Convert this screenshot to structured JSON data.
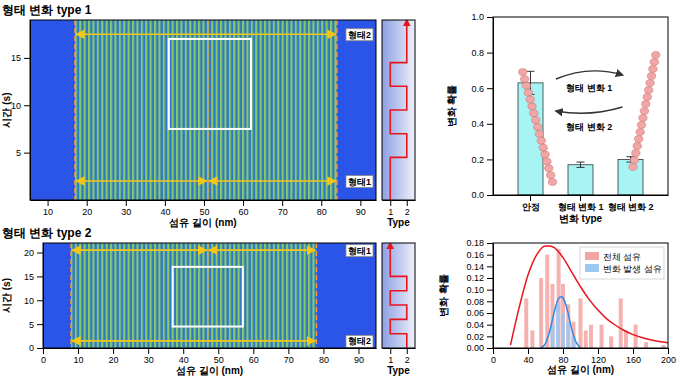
{
  "chart_data": [
    {
      "type": "kymograph",
      "title": "형태 변화 type 1",
      "x_label": "섬유 길이 (nm)",
      "y_label": "시간 (s)",
      "xlim": [
        5.5,
        94
      ],
      "xticks": [
        10,
        20,
        30,
        40,
        50,
        60,
        70,
        80,
        90
      ],
      "ylim": [
        0,
        19
      ],
      "yticks": [
        5,
        10,
        15
      ],
      "dashed_lines": [
        17,
        51,
        84
      ],
      "arrows": [
        {
          "from": 17,
          "to": 84,
          "y": 17.5
        },
        {
          "from": 17,
          "to": 51,
          "y": 2
        },
        {
          "from": 51,
          "to": 84,
          "y": 2
        }
      ],
      "state_labels": [
        {
          "text": "형태2",
          "y": 17.5
        },
        {
          "text": "형태1",
          "y": 2
        }
      ],
      "box": {
        "x": [
          41,
          62
        ],
        "y": [
          7.5,
          17
        ]
      },
      "type_panel": {
        "x_label": "Type",
        "xlim": [
          0.5,
          2.5
        ],
        "xticks": [
          1,
          2
        ],
        "color": "#e8141c",
        "x": [
          1,
          1,
          2,
          2,
          1,
          1,
          2,
          2,
          1,
          1,
          2,
          2
        ],
        "y": [
          0,
          4.5,
          4.5,
          7,
          7,
          9.5,
          9.5,
          12,
          12,
          14.5,
          14.5,
          19
        ]
      }
    },
    {
      "type": "bar",
      "x_label": "변화 type",
      "y_label": "변화 확률",
      "categories": [
        "안정",
        "형태 변화 1",
        "형태 변화 2"
      ],
      "values": [
        0.63,
        0.17,
        0.2
      ],
      "errors": [
        0.065,
        0.015,
        0.015
      ],
      "color": "#a8f4f4",
      "ylim": [
        0,
        1
      ],
      "yticks": [
        {
          "value": 0,
          "label": "0.0"
        },
        0.2,
        0.4,
        0.6,
        0.8,
        {
          "value": 1,
          "label": "1.0"
        }
      ],
      "annotations": [
        "형태 변화 1",
        "형태 변화 2"
      ]
    },
    {
      "type": "kymograph",
      "title": "형태 변화 type 2",
      "x_label": "섬유 길이 (nm)",
      "y_label": "시간 (s)",
      "xlim": [
        0,
        95
      ],
      "xticks": [
        0,
        10,
        20,
        30,
        40,
        50,
        60,
        70,
        80,
        90
      ],
      "ylim": [
        0,
        22
      ],
      "yticks": [
        0,
        5,
        10,
        15,
        20
      ],
      "dashed_lines": [
        8,
        47,
        78
      ],
      "arrows": [
        {
          "from": 8,
          "to": 47,
          "y": 20.5
        },
        {
          "from": 47,
          "to": 78,
          "y": 20.5
        },
        {
          "from": 8,
          "to": 78,
          "y": 1.5
        }
      ],
      "state_labels": [
        {
          "text": "형태1",
          "y": 20.5
        },
        {
          "text": "형태2",
          "y": 1.5
        }
      ],
      "box": {
        "x": [
          37,
          57
        ],
        "y": [
          4.5,
          17
        ]
      },
      "type_panel": {
        "x_label": "Type",
        "xlim": [
          0.5,
          2.5
        ],
        "xticks": [
          1,
          2
        ],
        "color": "#e8141c",
        "x": [
          2,
          2,
          1,
          1,
          2,
          2,
          1,
          1,
          2,
          2,
          1,
          1
        ],
        "y": [
          0,
          3,
          3,
          6,
          6,
          9,
          9,
          12,
          12,
          15,
          15,
          22
        ]
      }
    },
    {
      "type": "bar",
      "x_label": "섬유 길이 (nm)",
      "y_label": "변화 확률",
      "legend": "top-right",
      "xlim": [
        0,
        200
      ],
      "xticks": [
        0,
        40,
        80,
        120,
        160,
        200
      ],
      "ylim": [
        0,
        0.18
      ],
      "yticks": [
        {
          "value": 0,
          "label": "0.00"
        },
        {
          "value": 0.02,
          "label": "0.02"
        },
        {
          "value": 0.04,
          "label": "0.04"
        },
        {
          "value": 0.06,
          "label": "0.06"
        },
        {
          "value": 0.08,
          "label": "0.08"
        },
        {
          "value": 0.1,
          "label": "0.10"
        },
        {
          "value": 0.12,
          "label": "0.12"
        },
        {
          "value": 0.14,
          "label": "0.14"
        },
        {
          "value": 0.16,
          "label": "0.16"
        },
        {
          "value": 0.18,
          "label": "0.18"
        }
      ],
      "series": [
        {
          "name": "전체 섬유",
          "type": "bar",
          "color": "#f4a3a3",
          "x": [
            38,
            45,
            55,
            62,
            68,
            75,
            80,
            86,
            92,
            100,
            106,
            112,
            124,
            135,
            146,
            152,
            163,
            175,
            195
          ],
          "values": [
            0.085,
            0.03,
            0.12,
            0.16,
            0.11,
            0.17,
            0.11,
            0.075,
            0.045,
            0.085,
            0.03,
            0.04,
            0.04,
            0.02,
            0.085,
            0.03,
            0.04,
            0.01,
            0.005
          ]
        },
        {
          "name": "변화 발생 섬유",
          "type": "bar",
          "color": "#9cc8f2",
          "x": [
            68,
            74,
            80,
            86,
            92
          ],
          "values": [
            0.04,
            0.075,
            0.06,
            0.045,
            0.02
          ]
        },
        {
          "type": "line",
          "color": "#e8141c",
          "x": [
            20,
            30,
            40,
            50,
            60,
            65,
            70,
            80,
            90,
            100,
            110,
            120,
            130,
            140,
            150,
            160,
            170,
            180,
            190,
            200
          ],
          "values": [
            0.005,
            0.07,
            0.125,
            0.16,
            0.175,
            0.175,
            0.172,
            0.155,
            0.13,
            0.105,
            0.083,
            0.065,
            0.05,
            0.039,
            0.03,
            0.023,
            0.018,
            0.014,
            0.011,
            0.009
          ]
        },
        {
          "type": "line",
          "color": "#2e8be6",
          "x": [
            55,
            60,
            65,
            70,
            75,
            78,
            80,
            85,
            90,
            95,
            100
          ],
          "values": [
            0,
            0.008,
            0.03,
            0.062,
            0.085,
            0.088,
            0.086,
            0.065,
            0.032,
            0.01,
            0
          ]
        }
      ]
    }
  ]
}
